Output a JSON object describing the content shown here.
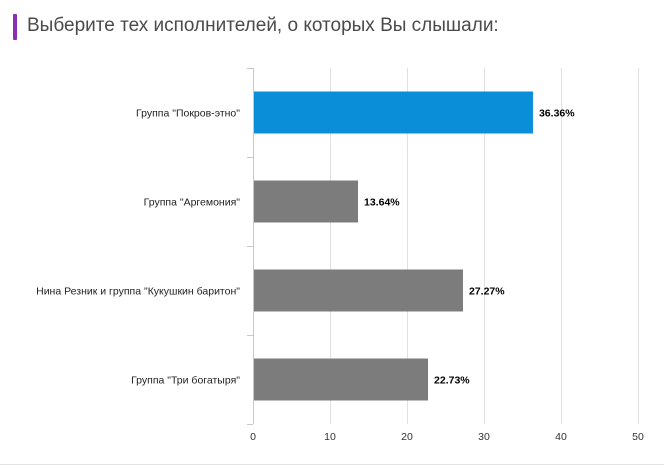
{
  "title": "Выберите тех исполнителей, о которых Вы слышали:",
  "colors": {
    "highlight": "#0a8ed8",
    "bar": "#7c7c7c",
    "accent": "#8e2fb3"
  },
  "chart_data": {
    "type": "bar",
    "orientation": "horizontal",
    "categories": [
      "Группа \"Покров-этно\"",
      "Группа \"Аргемония\"",
      "Нина Резник и группа \"Кукушкин баритон\"",
      "Группа \"Три богатыря\""
    ],
    "values": [
      36.36,
      13.64,
      27.27,
      22.73
    ],
    "value_labels": [
      "36.36%",
      "13.64%",
      "27.27%",
      "22.73%"
    ],
    "highlight_index": 0,
    "xlim": [
      0,
      50
    ],
    "xticks": [
      0,
      10,
      20,
      30,
      40,
      50
    ],
    "grid": true
  }
}
